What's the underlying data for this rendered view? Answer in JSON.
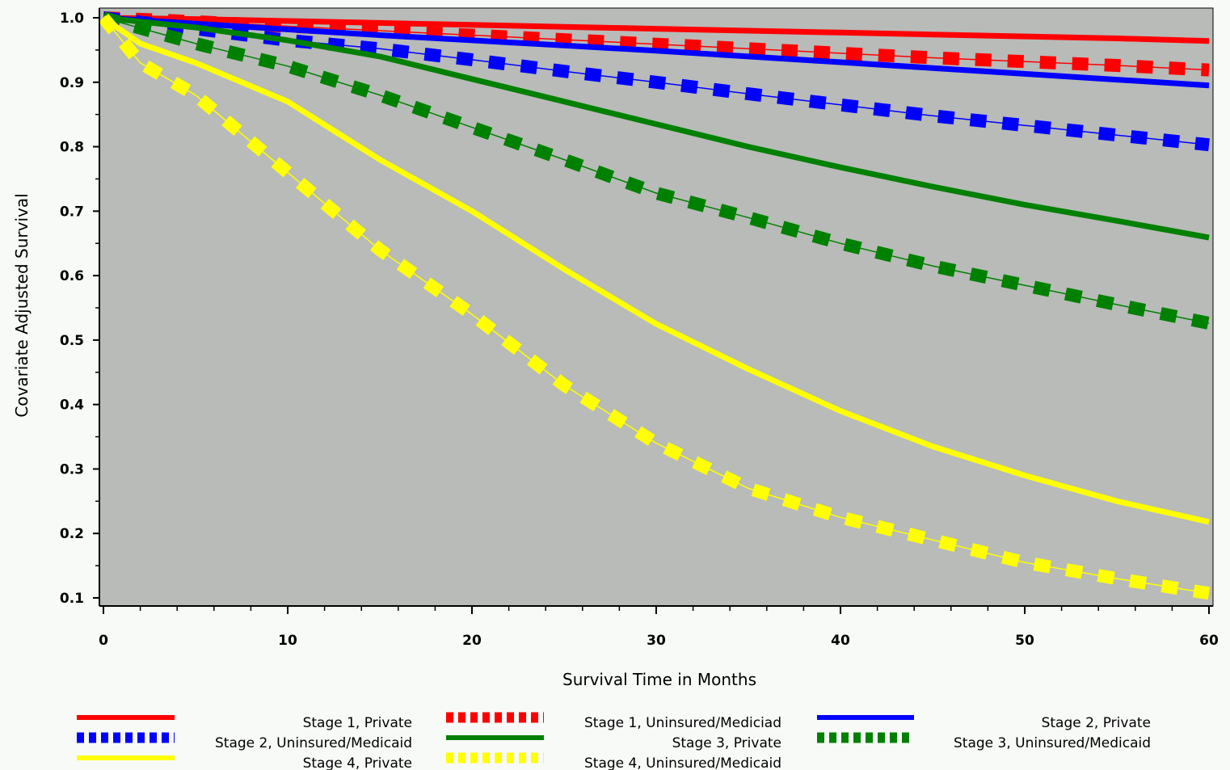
{
  "chart_data": {
    "type": "line",
    "title": "",
    "xlabel": "Survival Time in Months",
    "ylabel": "Covariate Adjusted Survival",
    "xlim": [
      0,
      60
    ],
    "ylim": [
      0.1,
      1.0
    ],
    "xticks": [
      0,
      10,
      20,
      30,
      40,
      50,
      60
    ],
    "xtick_labels": [
      "0",
      "10",
      "20",
      "30",
      "40",
      "50",
      "60"
    ],
    "yticks": [
      0.1,
      0.2,
      0.3,
      0.4,
      0.5,
      0.6,
      0.7,
      0.8,
      0.9,
      1.0
    ],
    "ytick_labels": [
      "0.1",
      "0.2",
      "0.3",
      "0.4",
      "0.5",
      "0.6",
      "0.7",
      "0.8",
      "0.9",
      "1.0"
    ],
    "grid": false,
    "plot_background": "#b8bbb8",
    "page_background": "#f7faf7",
    "legend_position": "bottom",
    "series": [
      {
        "name": "Stage 1, Private",
        "color": "#ff0000",
        "style": "solid",
        "x": [
          0,
          5,
          10,
          15,
          20,
          25,
          30,
          35,
          40,
          45,
          50,
          55,
          60
        ],
        "y": [
          1.0,
          0.998,
          0.995,
          0.992,
          0.989,
          0.986,
          0.983,
          0.98,
          0.977,
          0.974,
          0.971,
          0.968,
          0.964
        ]
      },
      {
        "name": "Stage 1, Uninsured/Mediciad",
        "color": "#ff0000",
        "style": "dashed",
        "x": [
          0,
          5,
          10,
          15,
          20,
          25,
          30,
          35,
          40,
          45,
          50,
          55,
          60
        ],
        "y": [
          1.0,
          0.994,
          0.987,
          0.98,
          0.973,
          0.966,
          0.959,
          0.952,
          0.945,
          0.938,
          0.932,
          0.926,
          0.919
        ]
      },
      {
        "name": "Stage 2, Private",
        "color": "#0000ff",
        "style": "solid",
        "x": [
          0,
          5,
          10,
          15,
          20,
          25,
          30,
          35,
          40,
          45,
          50,
          55,
          60
        ],
        "y": [
          1.0,
          0.991,
          0.982,
          0.973,
          0.965,
          0.957,
          0.949,
          0.94,
          0.931,
          0.922,
          0.913,
          0.904,
          0.895
        ]
      },
      {
        "name": "Stage 2, Uninsured/Medicaid",
        "color": "#0000ff",
        "style": "dashed",
        "x": [
          0,
          5,
          10,
          15,
          20,
          25,
          30,
          35,
          40,
          45,
          50,
          55,
          60
        ],
        "y": [
          1.0,
          0.983,
          0.965,
          0.952,
          0.935,
          0.917,
          0.9,
          0.882,
          0.865,
          0.848,
          0.833,
          0.818,
          0.803
        ]
      },
      {
        "name": "Stage 3, Private",
        "color": "#008000",
        "style": "solid",
        "x": [
          0,
          5,
          10,
          15,
          20,
          25,
          30,
          35,
          40,
          45,
          50,
          55,
          60
        ],
        "y": [
          1.0,
          0.985,
          0.965,
          0.94,
          0.905,
          0.87,
          0.835,
          0.8,
          0.768,
          0.738,
          0.71,
          0.685,
          0.659
        ]
      },
      {
        "name": "Stage 3, Uninsured/Medicaid",
        "color": "#008000",
        "style": "dashed",
        "x": [
          0,
          5,
          10,
          15,
          20,
          25,
          30,
          35,
          40,
          45,
          50,
          55,
          60
        ],
        "y": [
          1.0,
          0.96,
          0.925,
          0.88,
          0.83,
          0.78,
          0.728,
          0.69,
          0.65,
          0.615,
          0.585,
          0.555,
          0.526
        ]
      },
      {
        "name": "Stage 4, Private",
        "color": "#ffff00",
        "style": "solid",
        "x": [
          0,
          2,
          5,
          10,
          15,
          20,
          25,
          30,
          35,
          40,
          45,
          50,
          55,
          60
        ],
        "y": [
          1.0,
          0.96,
          0.93,
          0.87,
          0.78,
          0.7,
          0.61,
          0.525,
          0.455,
          0.39,
          0.335,
          0.29,
          0.25,
          0.218
        ]
      },
      {
        "name": "Stage 4, Uninsured/Medicaid",
        "color": "#ffff00",
        "style": "dashed",
        "x": [
          0,
          2,
          5,
          10,
          15,
          20,
          25,
          30,
          35,
          40,
          45,
          50,
          55,
          60
        ],
        "y": [
          1.0,
          0.93,
          0.88,
          0.76,
          0.64,
          0.54,
          0.43,
          0.34,
          0.27,
          0.225,
          0.19,
          0.155,
          0.13,
          0.107
        ]
      }
    ]
  }
}
